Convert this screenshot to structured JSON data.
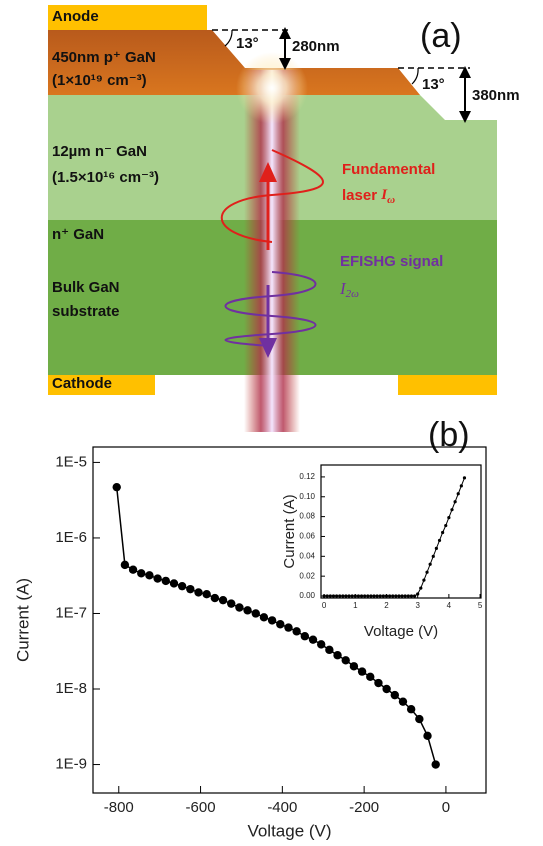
{
  "diagram": {
    "panel_label": "(a)",
    "anode": "Anode",
    "cathode": "Cathode",
    "p_layer": {
      "name": "450nm p⁺ GaN",
      "doping": "(1×10¹⁹ cm⁻³)"
    },
    "n_minus_layer": {
      "name": "12µm n⁻ GaN",
      "doping": "(1.5×10¹⁶ cm⁻³)"
    },
    "n_plus_layer": "n⁺ GaN",
    "substrate": [
      "Bulk GaN",
      "substrate"
    ],
    "angle_1": "13°",
    "step_1": "280nm",
    "angle_2": "13°",
    "step_2": "380nm",
    "fundamental": {
      "line1": "Fundamental",
      "line2": "laser",
      "symbol": "I",
      "subscript": "ω"
    },
    "efishg": {
      "line1": "EFISHG signal",
      "symbol": "I",
      "subscript": "2ω"
    }
  },
  "chart_data": [
    {
      "type": "line",
      "panel_label": "(b)",
      "xlabel": "Voltage (V)",
      "ylabel": "Current (A)",
      "log_y": true,
      "color": "#000000",
      "x": [
        -805,
        -785,
        -765,
        -745,
        -725,
        -705,
        -685,
        -665,
        -645,
        -625,
        -605,
        -585,
        -565,
        -545,
        -525,
        -505,
        -485,
        -465,
        -445,
        -425,
        -405,
        -385,
        -365,
        -345,
        -325,
        -305,
        -285,
        -265,
        -245,
        -225,
        -205,
        -185,
        -165,
        -145,
        -125,
        -105,
        -85,
        -65,
        -45,
        -25
      ],
      "values": [
        4.7e-06,
        4.4e-07,
        3.8e-07,
        3.4e-07,
        3.2e-07,
        2.9e-07,
        2.7e-07,
        2.5e-07,
        2.3e-07,
        2.1e-07,
        1.9e-07,
        1.8e-07,
        1.6e-07,
        1.5e-07,
        1.35e-07,
        1.2e-07,
        1.1e-07,
        1e-07,
        8.9e-08,
        8.1e-08,
        7.2e-08,
        6.5e-08,
        5.8e-08,
        5e-08,
        4.5e-08,
        3.9e-08,
        3.3e-08,
        2.8e-08,
        2.4e-08,
        2e-08,
        1.7e-08,
        1.45e-08,
        1.2e-08,
        1e-08,
        8.3e-09,
        6.8e-09,
        5.4e-09,
        4e-09,
        2.4e-09,
        1e-09
      ],
      "xlim": [
        -863,
        98
      ],
      "ylim": [
        4.2e-10,
        1.6e-05
      ],
      "xticks": [
        -800,
        -600,
        -400,
        -200,
        0
      ],
      "yticks": [
        {
          "value": 1e-09,
          "label": "1E-9"
        },
        {
          "value": 1e-08,
          "label": "1E-8"
        },
        {
          "value": 1e-07,
          "label": "1E-7"
        },
        {
          "value": 1e-06,
          "label": "1E-6"
        },
        {
          "value": 1e-05,
          "label": "1E-5"
        }
      ]
    },
    {
      "type": "line",
      "xlabel": "Voltage (V)",
      "ylabel": "Current (A)",
      "log_y": false,
      "color": "#000000",
      "x": [
        0,
        0.1,
        0.2,
        0.3,
        0.4,
        0.5,
        0.6,
        0.7,
        0.8,
        0.9,
        1.0,
        1.1,
        1.2,
        1.3,
        1.4,
        1.5,
        1.6,
        1.7,
        1.8,
        1.9,
        2.0,
        2.1,
        2.2,
        2.3,
        2.4,
        2.5,
        2.6,
        2.7,
        2.8,
        2.9,
        3.0,
        3.1,
        3.2,
        3.3,
        3.4,
        3.5,
        3.6,
        3.7,
        3.8,
        3.9,
        4.0,
        4.1,
        4.2,
        4.3,
        4.4,
        4.5
      ],
      "values": [
        0,
        0,
        0,
        0,
        0,
        0,
        0,
        0,
        0,
        0,
        0,
        0,
        0,
        0,
        0,
        0,
        0,
        0,
        0,
        0,
        0,
        0,
        0,
        0,
        0,
        0,
        0,
        0,
        0,
        0,
        0.002,
        0.008,
        0.016,
        0.024,
        0.032,
        0.04,
        0.048,
        0.056,
        0.064,
        0.071,
        0.079,
        0.087,
        0.095,
        0.103,
        0.111,
        0.119
      ],
      "xlim": [
        -0.1,
        5.03
      ],
      "ylim": [
        -0.002,
        0.132
      ],
      "xticks": [
        0,
        1,
        2,
        3,
        4,
        5
      ],
      "yticks": [
        {
          "value": 0,
          "label": "0.00"
        },
        0.02,
        0.04,
        0.06,
        0.08,
        {
          "value": 0.1,
          "label": "0.10"
        },
        0.12
      ]
    }
  ]
}
